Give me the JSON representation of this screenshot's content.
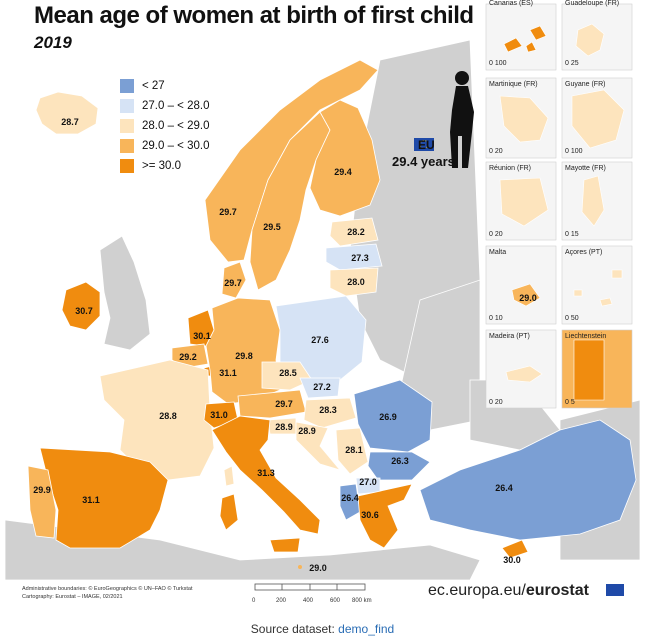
{
  "title": "Mean age of women at birth of first child",
  "subtitle": "2019",
  "colors": {
    "lt27": "#7b9fd4",
    "c27_28": "#d6e3f5",
    "c28_29": "#fde4bd",
    "c29_30": "#f8b55a",
    "ge30": "#f08c0f",
    "non_eu": "#d0d0d0",
    "sea": "#ffffff"
  },
  "legend": [
    {
      "label": "< 27",
      "color": "#7b9fd4"
    },
    {
      "label": "27.0 – < 28.0",
      "color": "#d6e3f5"
    },
    {
      "label": "28.0 – < 29.0",
      "color": "#fde4bd"
    },
    {
      "label": "29.0 – < 30.0",
      "color": "#f8b55a"
    },
    {
      "label": ">= 30.0",
      "color": "#f08c0f"
    }
  ],
  "eu": {
    "label": "EU",
    "value": "29.4 years"
  },
  "regions": [
    {
      "name": "Iceland",
      "value": "28.7"
    },
    {
      "name": "Ireland",
      "value": "30.7"
    },
    {
      "name": "Norway",
      "value": "29.7"
    },
    {
      "name": "Sweden",
      "value": "29.5"
    },
    {
      "name": "Finland",
      "value": "29.4"
    },
    {
      "name": "Estonia",
      "value": "28.2"
    },
    {
      "name": "Latvia",
      "value": "27.3"
    },
    {
      "name": "Lithuania",
      "value": "28.0"
    },
    {
      "name": "Denmark",
      "value": "29.7"
    },
    {
      "name": "Netherlands",
      "value": "30.1"
    },
    {
      "name": "Belgium",
      "value": "29.2"
    },
    {
      "name": "Luxembourg",
      "value": "31.1"
    },
    {
      "name": "Germany",
      "value": "29.8"
    },
    {
      "name": "Poland",
      "value": "27.6"
    },
    {
      "name": "Czechia",
      "value": "28.5"
    },
    {
      "name": "Slovakia",
      "value": "27.2"
    },
    {
      "name": "France",
      "value": "28.8"
    },
    {
      "name": "Switzerland",
      "value": "31.0"
    },
    {
      "name": "Austria",
      "value": "29.7"
    },
    {
      "name": "Hungary",
      "value": "28.3"
    },
    {
      "name": "Slovenia",
      "value": "28.9"
    },
    {
      "name": "Croatia",
      "value": "28.9"
    },
    {
      "name": "Romania",
      "value": "26.9"
    },
    {
      "name": "Serbia",
      "value": "28.1"
    },
    {
      "name": "Bulgaria",
      "value": "26.3"
    },
    {
      "name": "North Macedonia",
      "value": "27.0"
    },
    {
      "name": "Albania",
      "value": "26.4"
    },
    {
      "name": "Greece",
      "value": "30.6"
    },
    {
      "name": "Italy",
      "value": "31.3"
    },
    {
      "name": "Spain",
      "value": "31.1"
    },
    {
      "name": "Portugal",
      "value": "29.9"
    },
    {
      "name": "Turkey",
      "value": "26.4"
    },
    {
      "name": "Cyprus",
      "value": "30.0"
    },
    {
      "name": "Malta",
      "value": "29.0"
    },
    {
      "name": "Malta-main",
      "value": "29.0"
    }
  ],
  "insets": [
    {
      "title": "Canarias (ES)",
      "scale": [
        "0",
        "100"
      ]
    },
    {
      "title": "Guadeloupe (FR)",
      "scale": [
        "0",
        "25"
      ]
    },
    {
      "title": "Martinique (FR)",
      "scale": [
        "0",
        "20"
      ]
    },
    {
      "title": "Guyane (FR)",
      "scale": [
        "0",
        "100"
      ]
    },
    {
      "title": "Réunion (FR)",
      "scale": [
        "0",
        "20"
      ]
    },
    {
      "title": "Mayotte (FR)",
      "scale": [
        "0",
        "15"
      ]
    },
    {
      "title": "Malta",
      "scale": [
        "0",
        "10"
      ]
    },
    {
      "title": "Açores (PT)",
      "scale": [
        "0",
        "50"
      ]
    },
    {
      "title": "Madeira (PT)",
      "scale": [
        "0",
        "20"
      ]
    },
    {
      "title": "Liechtenstein",
      "scale": [
        "0",
        "5"
      ]
    }
  ],
  "footer": {
    "admin": "Administrative boundaries: © EuroGeographics © UN–FAO © Turkstat",
    "carto": "Cartography: Eurostat – IMAGE, 02/2021",
    "scale": [
      "0",
      "200",
      "400",
      "600",
      "800 km"
    ],
    "brand_plain": "ec.europa.eu/",
    "brand_bold": "eurostat"
  },
  "source": {
    "prefix": "Source dataset: ",
    "link": "demo_find"
  }
}
